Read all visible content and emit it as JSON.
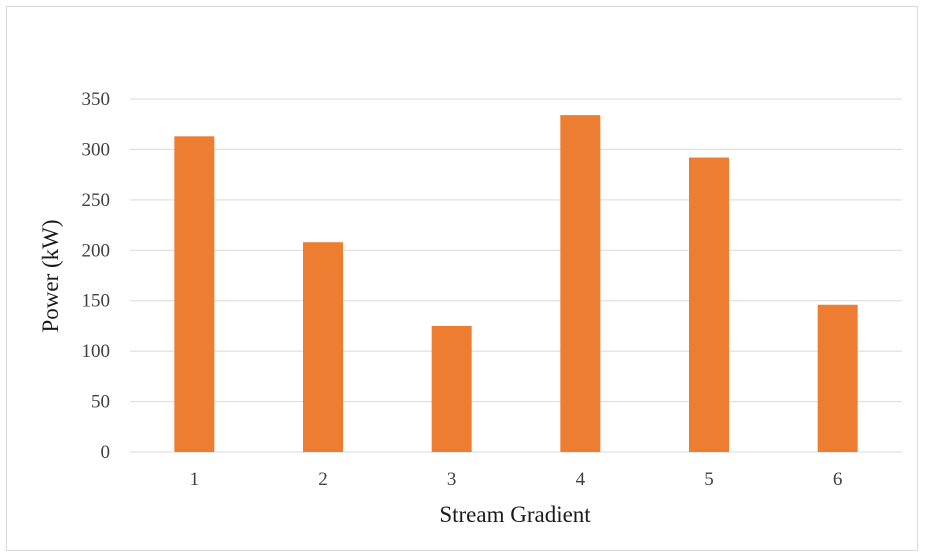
{
  "chart_data": {
    "type": "bar",
    "title": "",
    "xlabel": "Stream Gradient",
    "ylabel": "Power (kW)",
    "categories": [
      "1",
      "2",
      "3",
      "4",
      "5",
      "6"
    ],
    "values": [
      313,
      208,
      125,
      334,
      292,
      146
    ],
    "ylim": [
      0,
      350
    ],
    "yticks": [
      "0",
      "50",
      "100",
      "150",
      "200",
      "250",
      "300",
      "350"
    ],
    "grid": true,
    "legend": "none",
    "bar_color": "#ED7D31",
    "grid_color": "#D9D9D9"
  }
}
